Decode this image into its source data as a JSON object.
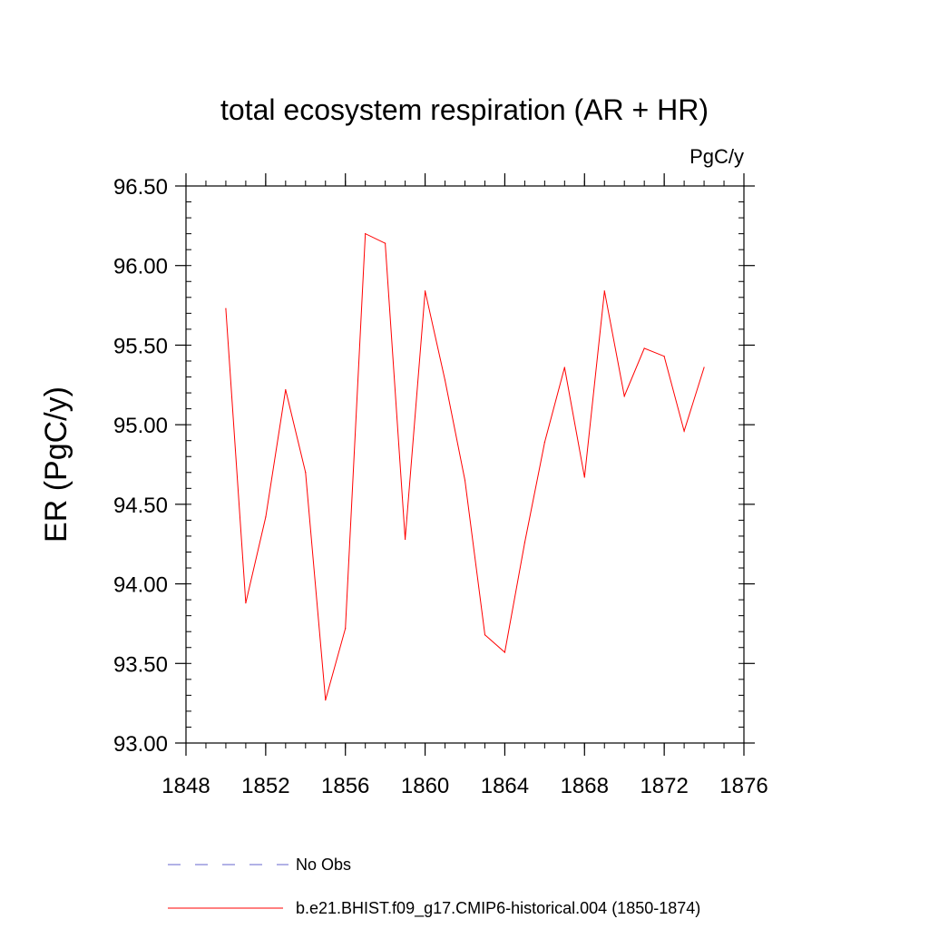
{
  "chart_data": {
    "type": "line",
    "title": "total ecosystem respiration (AR + HR)",
    "units": "PgC/y",
    "xlabel": "",
    "ylabel": "ER  (PgC/y)",
    "xlim": [
      1848,
      1876
    ],
    "ylim": [
      93.0,
      96.5
    ],
    "x_ticks": [
      "1848",
      "1852",
      "1856",
      "1860",
      "1864",
      "1868",
      "1872",
      "1876"
    ],
    "y_ticks": [
      "93.00",
      "93.50",
      "94.00",
      "94.50",
      "95.00",
      "95.50",
      "96.00",
      "96.50"
    ],
    "series": [
      {
        "name": "b.e21.BHIST.f09_g17.CMIP6-historical.004 (1850-1874)",
        "color": "#ff0000",
        "x": [
          1850,
          1851,
          1852,
          1853,
          1854,
          1855,
          1856,
          1857,
          1858,
          1859,
          1860,
          1861,
          1862,
          1863,
          1864,
          1865,
          1866,
          1867,
          1868,
          1869,
          1870,
          1871,
          1872,
          1873,
          1874
        ],
        "values": [
          95.73,
          93.88,
          94.42,
          95.22,
          94.7,
          93.27,
          93.72,
          96.2,
          96.14,
          94.28,
          95.84,
          95.28,
          94.65,
          93.68,
          93.57,
          94.26,
          94.89,
          95.36,
          94.67,
          95.84,
          95.18,
          95.48,
          95.43,
          94.96,
          95.36
        ]
      }
    ],
    "legend": [
      {
        "label": "No Obs",
        "style": "dashed",
        "color": "#6666cc"
      },
      {
        "label": "b.e21.BHIST.f09_g17.CMIP6-historical.004 (1850-1874)",
        "style": "solid",
        "color": "#ff0000"
      }
    ]
  }
}
